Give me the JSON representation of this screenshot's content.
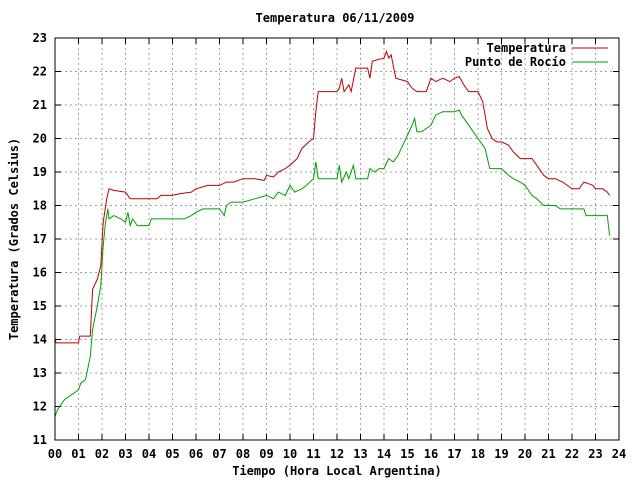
{
  "chart_data": {
    "type": "line",
    "title": "Temperatura 06/11/2009",
    "xlabel": "Tiempo (Hora Local Argentina)",
    "ylabel": "Temperatura (Grados Celsius)",
    "xlim": [
      0,
      24
    ],
    "ylim": [
      11,
      23
    ],
    "xticks": [
      "00",
      "01",
      "02",
      "03",
      "04",
      "05",
      "06",
      "07",
      "08",
      "09",
      "10",
      "11",
      "12",
      "13",
      "14",
      "15",
      "16",
      "17",
      "18",
      "19",
      "20",
      "21",
      "22",
      "23",
      "24"
    ],
    "yticks": [
      "11",
      "12",
      "13",
      "14",
      "15",
      "16",
      "17",
      "18",
      "19",
      "20",
      "21",
      "22",
      "23"
    ],
    "grid": true,
    "legend_position": "top-right",
    "series": [
      {
        "name": "Temperatura",
        "color": "#c00000",
        "points": [
          [
            0,
            14.0
          ],
          [
            0.05,
            13.9
          ],
          [
            1.0,
            13.9
          ],
          [
            1.05,
            14.1
          ],
          [
            1.5,
            14.1
          ],
          [
            1.6,
            15.5
          ],
          [
            1.8,
            15.8
          ],
          [
            1.95,
            16.2
          ],
          [
            2.05,
            17.5
          ],
          [
            2.2,
            18.2
          ],
          [
            2.3,
            18.5
          ],
          [
            2.5,
            18.45
          ],
          [
            3.0,
            18.4
          ],
          [
            3.2,
            18.2
          ],
          [
            3.5,
            18.2
          ],
          [
            4.0,
            18.2
          ],
          [
            4.35,
            18.2
          ],
          [
            4.5,
            18.3
          ],
          [
            5.0,
            18.3
          ],
          [
            5.3,
            18.35
          ],
          [
            5.8,
            18.4
          ],
          [
            6.0,
            18.5
          ],
          [
            6.5,
            18.6
          ],
          [
            7.0,
            18.6
          ],
          [
            7.3,
            18.7
          ],
          [
            7.6,
            18.7
          ],
          [
            8.0,
            18.8
          ],
          [
            8.5,
            18.8
          ],
          [
            8.9,
            18.75
          ],
          [
            9.0,
            18.9
          ],
          [
            9.3,
            18.85
          ],
          [
            9.5,
            19.0
          ],
          [
            9.8,
            19.1
          ],
          [
            10.0,
            19.2
          ],
          [
            10.3,
            19.4
          ],
          [
            10.5,
            19.7
          ],
          [
            10.8,
            19.9
          ],
          [
            11.0,
            20.0
          ],
          [
            11.1,
            20.8
          ],
          [
            11.2,
            21.4
          ],
          [
            11.5,
            21.4
          ],
          [
            12.0,
            21.4
          ],
          [
            12.1,
            21.5
          ],
          [
            12.2,
            21.8
          ],
          [
            12.3,
            21.4
          ],
          [
            12.5,
            21.6
          ],
          [
            12.6,
            21.4
          ],
          [
            12.8,
            22.1
          ],
          [
            13.0,
            22.1
          ],
          [
            13.3,
            22.1
          ],
          [
            13.4,
            21.8
          ],
          [
            13.5,
            22.3
          ],
          [
            13.7,
            22.35
          ],
          [
            14.0,
            22.4
          ],
          [
            14.1,
            22.6
          ],
          [
            14.2,
            22.4
          ],
          [
            14.3,
            22.5
          ],
          [
            14.5,
            21.8
          ],
          [
            15.0,
            21.7
          ],
          [
            15.2,
            21.5
          ],
          [
            15.4,
            21.4
          ],
          [
            15.6,
            21.4
          ],
          [
            15.8,
            21.4
          ],
          [
            16.0,
            21.8
          ],
          [
            16.2,
            21.7
          ],
          [
            16.5,
            21.8
          ],
          [
            16.8,
            21.7
          ],
          [
            17.0,
            21.8
          ],
          [
            17.2,
            21.85
          ],
          [
            17.4,
            21.6
          ],
          [
            17.6,
            21.4
          ],
          [
            18.0,
            21.4
          ],
          [
            18.2,
            21.1
          ],
          [
            18.4,
            20.3
          ],
          [
            18.6,
            20.0
          ],
          [
            18.8,
            19.9
          ],
          [
            19.0,
            19.9
          ],
          [
            19.3,
            19.8
          ],
          [
            19.5,
            19.6
          ],
          [
            19.8,
            19.4
          ],
          [
            20.0,
            19.4
          ],
          [
            20.3,
            19.4
          ],
          [
            20.5,
            19.2
          ],
          [
            20.8,
            18.9
          ],
          [
            21.0,
            18.8
          ],
          [
            21.3,
            18.8
          ],
          [
            21.6,
            18.7
          ],
          [
            21.8,
            18.6
          ],
          [
            22.0,
            18.5
          ],
          [
            22.3,
            18.5
          ],
          [
            22.5,
            18.7
          ],
          [
            22.7,
            18.65
          ],
          [
            22.9,
            18.6
          ],
          [
            23.0,
            18.5
          ],
          [
            23.3,
            18.5
          ],
          [
            23.5,
            18.4
          ],
          [
            23.6,
            18.3
          ]
        ]
      },
      {
        "name": "Punto de Rocío",
        "color": "#00a000",
        "points": [
          [
            0,
            11.7
          ],
          [
            0.1,
            11.9
          ],
          [
            0.2,
            12.0
          ],
          [
            0.4,
            12.2
          ],
          [
            0.6,
            12.3
          ],
          [
            0.8,
            12.4
          ],
          [
            1.0,
            12.5
          ],
          [
            1.1,
            12.7
          ],
          [
            1.3,
            12.8
          ],
          [
            1.5,
            13.5
          ],
          [
            1.6,
            14.3
          ],
          [
            1.8,
            15.0
          ],
          [
            1.95,
            15.6
          ],
          [
            2.05,
            16.8
          ],
          [
            2.15,
            17.5
          ],
          [
            2.25,
            17.9
          ],
          [
            2.3,
            17.6
          ],
          [
            2.5,
            17.7
          ],
          [
            2.8,
            17.6
          ],
          [
            3.0,
            17.5
          ],
          [
            3.1,
            17.8
          ],
          [
            3.2,
            17.4
          ],
          [
            3.3,
            17.6
          ],
          [
            3.5,
            17.4
          ],
          [
            4.0,
            17.4
          ],
          [
            4.1,
            17.6
          ],
          [
            4.5,
            17.6
          ],
          [
            5.0,
            17.6
          ],
          [
            5.5,
            17.6
          ],
          [
            5.8,
            17.7
          ],
          [
            6.0,
            17.8
          ],
          [
            6.3,
            17.9
          ],
          [
            7.0,
            17.9
          ],
          [
            7.2,
            17.7
          ],
          [
            7.3,
            18.0
          ],
          [
            7.5,
            18.1
          ],
          [
            8.0,
            18.1
          ],
          [
            8.5,
            18.2
          ],
          [
            9.0,
            18.3
          ],
          [
            9.3,
            18.2
          ],
          [
            9.5,
            18.4
          ],
          [
            9.8,
            18.3
          ],
          [
            10.0,
            18.6
          ],
          [
            10.2,
            18.4
          ],
          [
            10.5,
            18.5
          ],
          [
            10.7,
            18.6
          ],
          [
            11.0,
            18.8
          ],
          [
            11.1,
            19.3
          ],
          [
            11.2,
            18.8
          ],
          [
            11.5,
            18.8
          ],
          [
            12.0,
            18.8
          ],
          [
            12.1,
            19.2
          ],
          [
            12.2,
            18.7
          ],
          [
            12.4,
            19.0
          ],
          [
            12.5,
            18.8
          ],
          [
            12.7,
            19.2
          ],
          [
            12.8,
            18.8
          ],
          [
            13.0,
            18.8
          ],
          [
            13.3,
            18.8
          ],
          [
            13.4,
            19.1
          ],
          [
            13.6,
            19.0
          ],
          [
            13.8,
            19.1
          ],
          [
            14.0,
            19.1
          ],
          [
            14.2,
            19.4
          ],
          [
            14.4,
            19.3
          ],
          [
            14.6,
            19.5
          ],
          [
            14.8,
            19.8
          ],
          [
            15.0,
            20.1
          ],
          [
            15.2,
            20.4
          ],
          [
            15.3,
            20.6
          ],
          [
            15.4,
            20.2
          ],
          [
            15.6,
            20.2
          ],
          [
            16.0,
            20.4
          ],
          [
            16.2,
            20.7
          ],
          [
            16.5,
            20.8
          ],
          [
            17.0,
            20.8
          ],
          [
            17.2,
            20.85
          ],
          [
            17.3,
            20.7
          ],
          [
            17.5,
            20.5
          ],
          [
            17.8,
            20.2
          ],
          [
            18.0,
            20.0
          ],
          [
            18.3,
            19.7
          ],
          [
            18.5,
            19.1
          ],
          [
            18.8,
            19.1
          ],
          [
            19.0,
            19.1
          ],
          [
            19.3,
            18.9
          ],
          [
            19.5,
            18.8
          ],
          [
            19.8,
            18.7
          ],
          [
            20.0,
            18.6
          ],
          [
            20.3,
            18.3
          ],
          [
            20.5,
            18.2
          ],
          [
            20.8,
            18.0
          ],
          [
            21.0,
            18.0
          ],
          [
            21.3,
            18.0
          ],
          [
            21.5,
            17.9
          ],
          [
            22.0,
            17.9
          ],
          [
            22.3,
            17.9
          ],
          [
            22.5,
            17.9
          ],
          [
            22.6,
            17.7
          ],
          [
            23.0,
            17.7
          ],
          [
            23.3,
            17.7
          ],
          [
            23.5,
            17.7
          ],
          [
            23.6,
            17.1
          ]
        ]
      }
    ]
  }
}
